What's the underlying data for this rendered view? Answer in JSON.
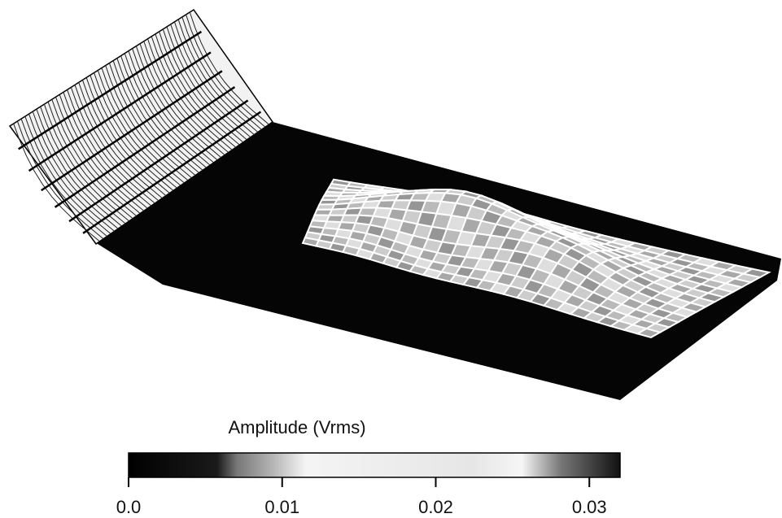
{
  "chart_data": {
    "type": "surface",
    "colorbar_label": "Amplitude (Vrms)",
    "colorbar_lim": [
      0,
      0.032
    ],
    "colorbar_ticks": [
      {
        "value": 0,
        "label": "0.0"
      },
      0.01,
      0.02,
      0.03
    ]
  }
}
